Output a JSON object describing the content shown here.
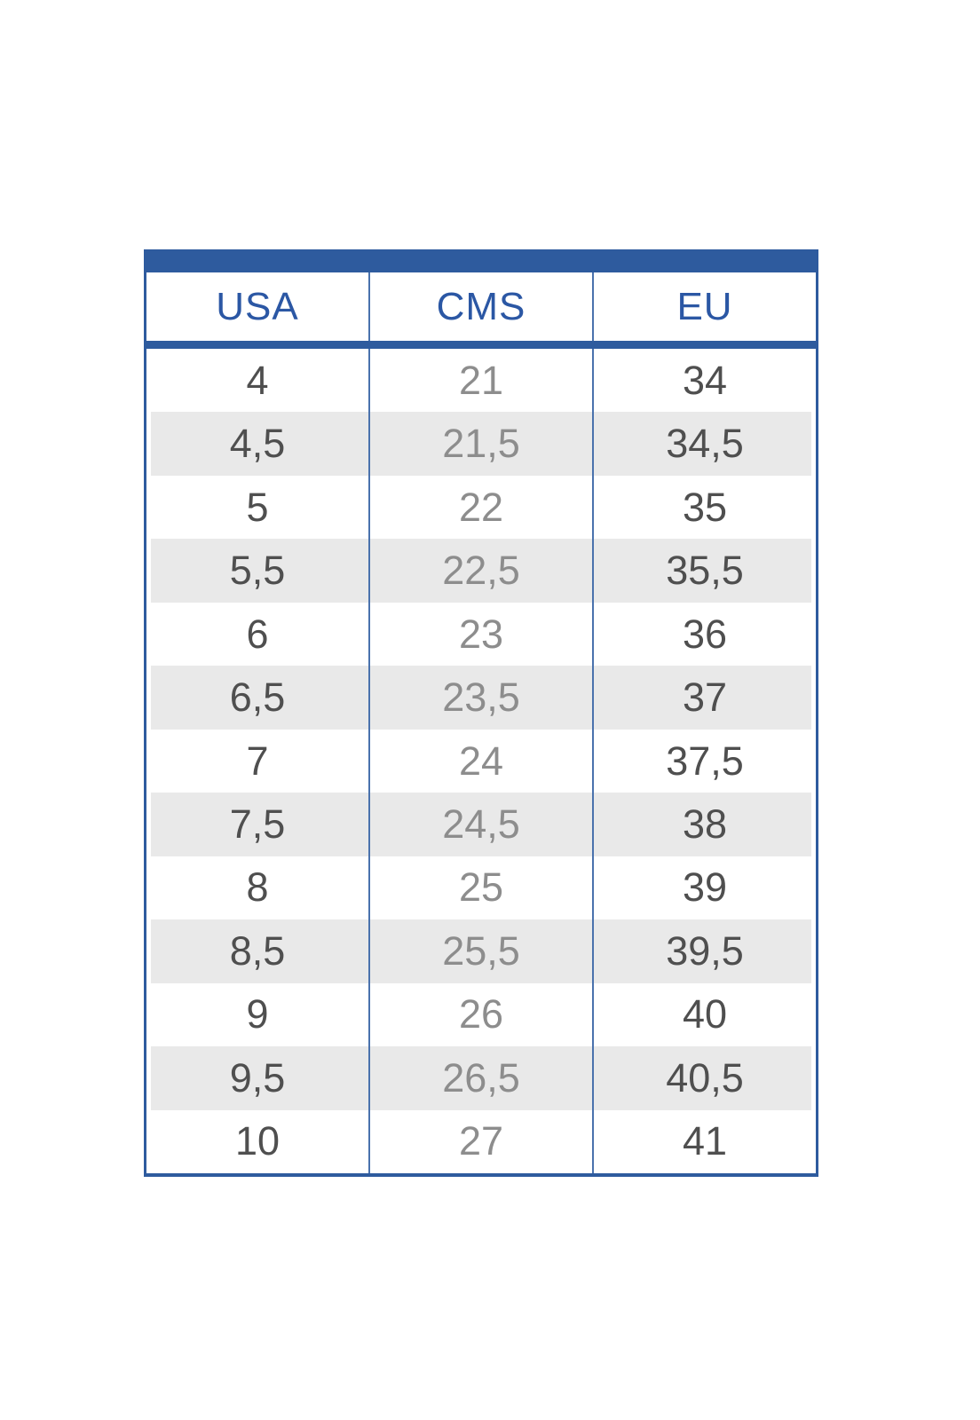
{
  "chart_data": {
    "type": "table",
    "columns": [
      "USA",
      "CMS",
      "EU"
    ],
    "rows": [
      [
        "4",
        "21",
        "34"
      ],
      [
        "4,5",
        "21,5",
        "34,5"
      ],
      [
        "5",
        "22",
        "35"
      ],
      [
        "5,5",
        "22,5",
        "35,5"
      ],
      [
        "6",
        "23",
        "36"
      ],
      [
        "6,5",
        "23,5",
        "37"
      ],
      [
        "7",
        "24",
        "37,5"
      ],
      [
        "7,5",
        "24,5",
        "38"
      ],
      [
        "8",
        "25",
        "39"
      ],
      [
        "8,5",
        "25,5",
        "39,5"
      ],
      [
        "9",
        "26",
        "40"
      ],
      [
        "9,5",
        "26,5",
        "40,5"
      ],
      [
        "10",
        "27",
        "41"
      ]
    ],
    "layout": {
      "striped": true,
      "first_row_background": "white",
      "header_position": "top"
    },
    "colors": {
      "accent_blue": "#2e5b9e",
      "header_text_blue": "#2b57a4",
      "grid_line_blue": "#4a72ad",
      "row_stripe_gray": "#e9e9e9",
      "value_text_dark": "#4f4f4f",
      "value_text_mid": "#8d8d8d",
      "page_background": "#ffffff"
    }
  }
}
